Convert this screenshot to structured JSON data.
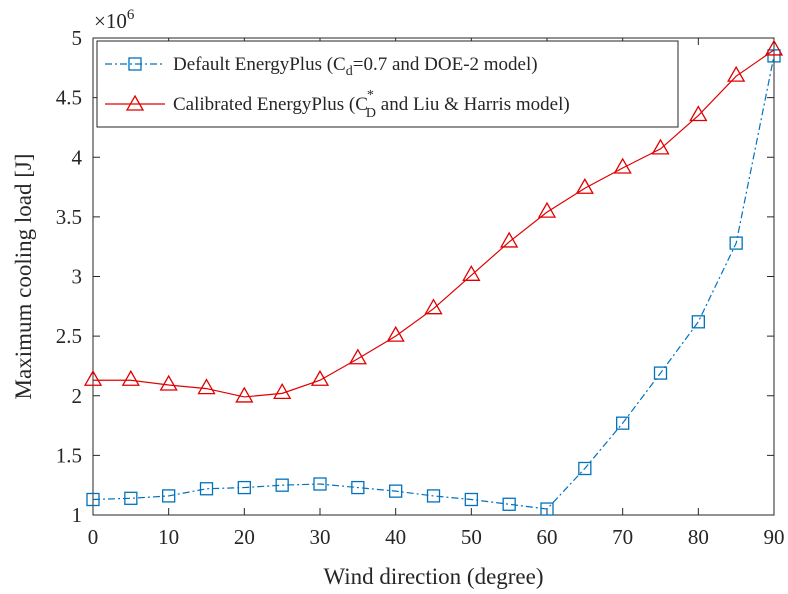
{
  "chart_data": {
    "type": "line",
    "xlabel": "Wind direction (degree)",
    "ylabel": "Maximum cooling load [J]",
    "y_multiplier": "×10",
    "y_multiplier_exp": "6",
    "xlim": [
      0,
      90
    ],
    "ylim": [
      1,
      5
    ],
    "x_ticks": [
      0,
      10,
      20,
      30,
      40,
      50,
      60,
      70,
      80,
      90
    ],
    "y_ticks": [
      1,
      1.5,
      2,
      2.5,
      3,
      3.5,
      4,
      4.5,
      5
    ],
    "y_tick_labels": [
      "1",
      "1.5",
      "2",
      "2.5",
      "3",
      "3.5",
      "4",
      "4.5",
      "5"
    ],
    "grid": false,
    "legend_position": "top-left",
    "x": [
      0,
      5,
      10,
      15,
      20,
      25,
      30,
      35,
      40,
      45,
      50,
      55,
      60,
      65,
      70,
      75,
      80,
      85,
      90
    ],
    "series": [
      {
        "legend": {
          "prefix": "Default EnergyPlus (C",
          "sub": "d",
          "suffix": "=0.7 and DOE-2 model)"
        },
        "color": "#0072BD",
        "marker": "square",
        "line_style": "dash-dot",
        "values": [
          1.13,
          1.14,
          1.16,
          1.22,
          1.23,
          1.25,
          1.26,
          1.23,
          1.2,
          1.16,
          1.13,
          1.09,
          1.05,
          1.39,
          1.77,
          2.19,
          2.62,
          3.28,
          4.85
        ]
      },
      {
        "legend": {
          "prefix": "Calibrated EnergyPlus (C",
          "sup": "*",
          "sub": "D",
          "suffix": " and Liu & Harris model)"
        },
        "color": "#E00000",
        "marker": "triangle",
        "line_style": "solid",
        "values": [
          2.13,
          2.13,
          2.09,
          2.06,
          1.99,
          2.02,
          2.13,
          2.31,
          2.5,
          2.73,
          3.01,
          3.29,
          3.54,
          3.74,
          3.91,
          4.07,
          4.35,
          4.68,
          4.9
        ]
      }
    ]
  }
}
